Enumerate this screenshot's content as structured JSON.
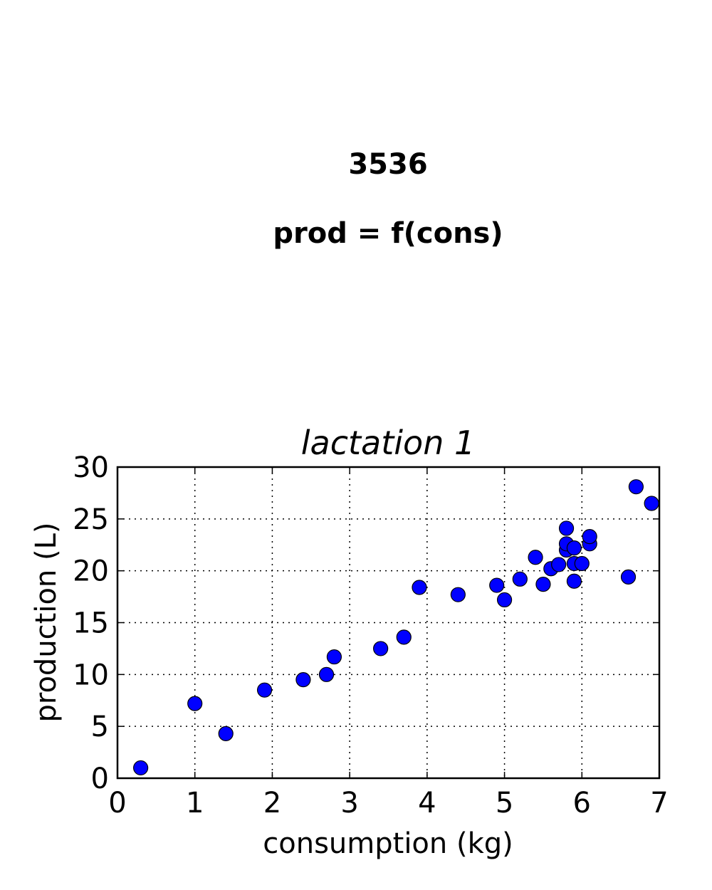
{
  "figure": {
    "suptitle_line1": "3536",
    "suptitle_line2": "prod = f(cons)"
  },
  "chart_data": {
    "type": "scatter",
    "title": "lactation 1",
    "xlabel": "consumption (kg)",
    "ylabel": "production (L)",
    "xlim": [
      0,
      7
    ],
    "ylim": [
      0,
      30
    ],
    "xticks": [
      0,
      1,
      2,
      3,
      4,
      5,
      6,
      7
    ],
    "yticks": [
      0,
      5,
      10,
      15,
      20,
      25,
      30
    ],
    "grid": true,
    "marker_color": "#0000ff",
    "points": [
      {
        "x": 0.3,
        "y": 1.0
      },
      {
        "x": 1.0,
        "y": 7.2
      },
      {
        "x": 1.4,
        "y": 4.3
      },
      {
        "x": 1.9,
        "y": 8.5
      },
      {
        "x": 2.4,
        "y": 9.5
      },
      {
        "x": 2.7,
        "y": 10.0
      },
      {
        "x": 2.8,
        "y": 11.7
      },
      {
        "x": 3.4,
        "y": 12.5
      },
      {
        "x": 3.7,
        "y": 13.6
      },
      {
        "x": 3.9,
        "y": 18.4
      },
      {
        "x": 4.4,
        "y": 17.7
      },
      {
        "x": 4.9,
        "y": 18.6
      },
      {
        "x": 5.0,
        "y": 17.2
      },
      {
        "x": 5.2,
        "y": 19.2
      },
      {
        "x": 5.4,
        "y": 21.3
      },
      {
        "x": 5.5,
        "y": 18.7
      },
      {
        "x": 5.6,
        "y": 20.2
      },
      {
        "x": 5.7,
        "y": 20.6
      },
      {
        "x": 5.8,
        "y": 22.0
      },
      {
        "x": 5.8,
        "y": 22.6
      },
      {
        "x": 5.8,
        "y": 24.1
      },
      {
        "x": 5.9,
        "y": 22.2
      },
      {
        "x": 5.9,
        "y": 20.7
      },
      {
        "x": 5.9,
        "y": 19.0
      },
      {
        "x": 6.0,
        "y": 20.7
      },
      {
        "x": 6.1,
        "y": 22.6
      },
      {
        "x": 6.1,
        "y": 23.3
      },
      {
        "x": 6.6,
        "y": 19.4
      },
      {
        "x": 6.7,
        "y": 28.1
      },
      {
        "x": 6.9,
        "y": 26.5
      }
    ]
  }
}
